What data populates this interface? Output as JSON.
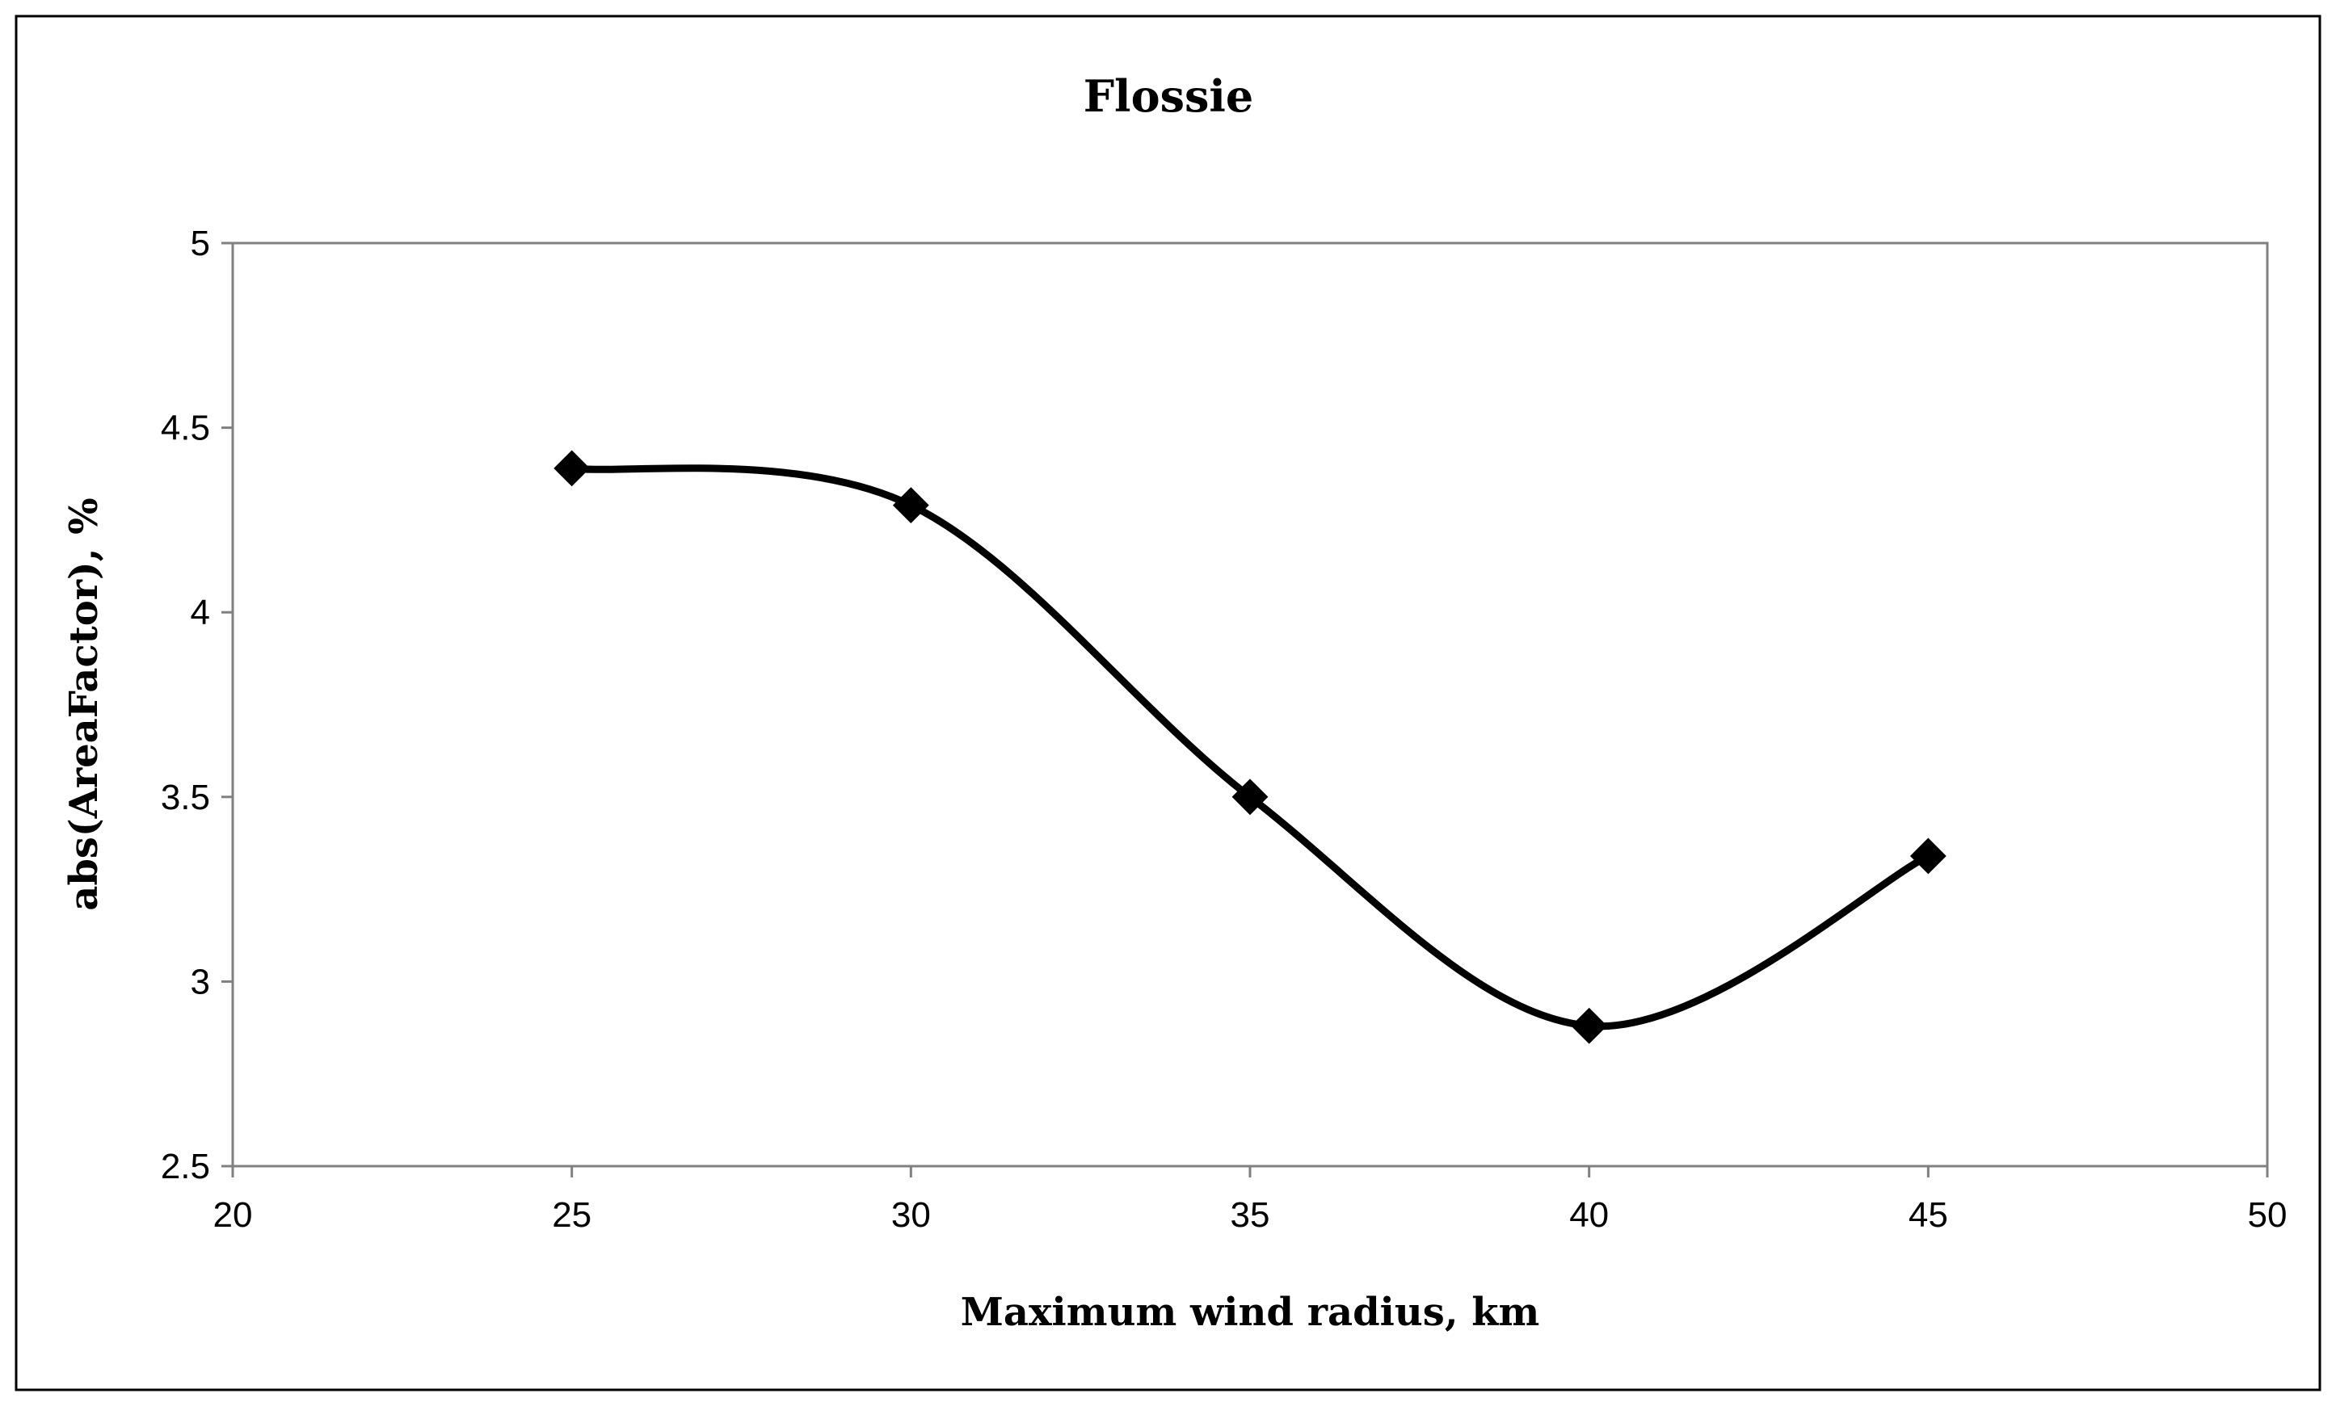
{
  "chart_data": {
    "type": "line",
    "title": "Flossie",
    "xlabel": "Maximum wind radius, km",
    "ylabel": "abs(AreaFactor), %",
    "xlim": [
      20,
      50
    ],
    "ylim": [
      2.5,
      5
    ],
    "xticks": [
      20,
      25,
      30,
      35,
      40,
      45,
      50
    ],
    "yticks": [
      2.5,
      3,
      3.5,
      4,
      4.5,
      5
    ],
    "xtick_labels": [
      "20",
      "25",
      "30",
      "35",
      "40",
      "45",
      "50"
    ],
    "ytick_labels": [
      "2.5",
      "3",
      "3.5",
      "4",
      "4.5",
      "5"
    ],
    "grid": false,
    "legend": "none",
    "series": [
      {
        "name": "Flossie",
        "marker": "diamond",
        "smooth": true,
        "x": [
          25,
          30,
          35,
          40,
          45
        ],
        "y": [
          4.39,
          4.29,
          3.5,
          2.88,
          3.34
        ]
      }
    ],
    "colors": {
      "line": "#000000",
      "axis": "#808080",
      "frame": "#000000"
    }
  }
}
